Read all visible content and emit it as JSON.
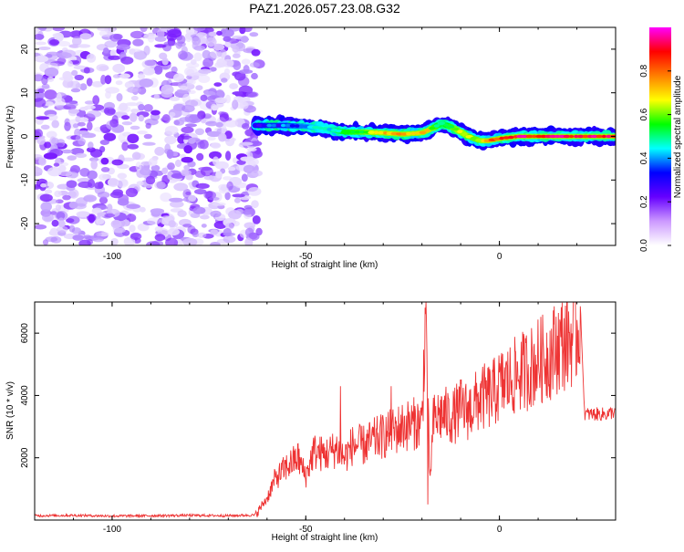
{
  "figure_title": "PAZ1.2026.057.23.08.G32",
  "chart_data": [
    {
      "type": "heatmap",
      "xlabel": "Height of straight line (km)",
      "ylabel": "Frequency (Hz)",
      "xlim": [
        -120,
        30
      ],
      "ylim": [
        -25,
        25
      ],
      "xticks": [
        -100,
        -50,
        0
      ],
      "xtick_labels": [
        "-100",
        "-50",
        "0"
      ],
      "yticks": [
        20,
        10,
        0,
        -10,
        -20
      ],
      "ytick_labels": [
        "20",
        "10",
        "0",
        "-10",
        "-20"
      ],
      "noise_region_x": [
        -120,
        -62
      ],
      "ridge": {
        "x": [
          -63,
          -60,
          -55,
          -50,
          -45,
          -40,
          -35,
          -30,
          -25,
          -20,
          -17,
          -15,
          -12,
          -10,
          -8,
          -5,
          -3,
          0,
          5,
          10,
          15,
          20,
          25,
          30
        ],
        "freq": [
          2.5,
          2.5,
          2.5,
          2.3,
          1.8,
          1.0,
          1.0,
          0.8,
          0.5,
          0.8,
          2.0,
          3.0,
          2.0,
          1.0,
          0.0,
          -1.0,
          -1.0,
          -0.5,
          0.0,
          0.0,
          0.0,
          0.0,
          0.0,
          0.0
        ],
        "amplitude": [
          0.3,
          0.35,
          0.35,
          0.4,
          0.45,
          0.55,
          0.6,
          0.7,
          0.75,
          0.75,
          0.6,
          0.5,
          0.6,
          0.7,
          0.6,
          0.6,
          0.8,
          0.85,
          0.9,
          0.9,
          0.9,
          0.9,
          0.9,
          0.9
        ]
      },
      "colorbar": {
        "label": "Normalized spectral amplitude",
        "range": [
          0,
          1
        ],
        "ticks": [
          0.0,
          0.2,
          0.4,
          0.6,
          0.8
        ],
        "tick_labels": [
          "0.0",
          "0.2",
          "0.4",
          "0.6",
          "0.8"
        ],
        "colors": [
          "#ffffff",
          "#cc99ff",
          "#6600ff",
          "#0000ff",
          "#00ffff",
          "#00ff00",
          "#ffff00",
          "#ff7f00",
          "#ff0000",
          "#ff00ff"
        ]
      }
    },
    {
      "type": "line",
      "xlabel": "Height of straight line (km)",
      "ylabel": "SNR (10 * v/v)",
      "xlim": [
        -120,
        30
      ],
      "ylim": [
        0,
        7000
      ],
      "xticks": [
        -100,
        -50,
        0
      ],
      "xtick_labels": [
        "-100",
        "-50",
        "0"
      ],
      "yticks": [
        2000,
        4000,
        6000
      ],
      "ytick_labels": [
        "2000",
        "4000",
        "6000"
      ],
      "line_color": "#ee3333",
      "series": [
        {
          "name": "SNR",
          "x": [
            -120,
            -110,
            -100,
            -90,
            -80,
            -70,
            -63,
            -60,
            -58,
            -55,
            -52,
            -50,
            -48,
            -45,
            -42,
            -40,
            -38,
            -35,
            -32,
            -30,
            -28,
            -25,
            -22,
            -20,
            -19,
            -18,
            -17,
            -15,
            -12,
            -10,
            -8,
            -5,
            -2,
            0,
            3,
            5,
            8,
            10,
            13,
            15,
            18,
            20,
            21,
            22,
            25,
            28,
            30
          ],
          "y": [
            140,
            150,
            130,
            140,
            150,
            140,
            160,
            700,
            1300,
            1700,
            2000,
            1400,
            2200,
            2100,
            2300,
            2000,
            2400,
            2400,
            2600,
            2700,
            2800,
            3000,
            3100,
            3100,
            7000,
            1200,
            3200,
            3400,
            3300,
            3600,
            3500,
            3900,
            4000,
            4300,
            4500,
            4700,
            4900,
            5100,
            5300,
            5600,
            5800,
            6000,
            6500,
            3400,
            3400,
            3400,
            3500
          ],
          "spikes": [
            {
              "x": -19,
              "y": 7000
            },
            {
              "x": -18.5,
              "y": 500
            },
            {
              "x": -41,
              "y": 4300
            },
            {
              "x": -28,
              "y": 4300
            },
            {
              "x": 21,
              "y": 6600
            }
          ]
        }
      ]
    }
  ]
}
